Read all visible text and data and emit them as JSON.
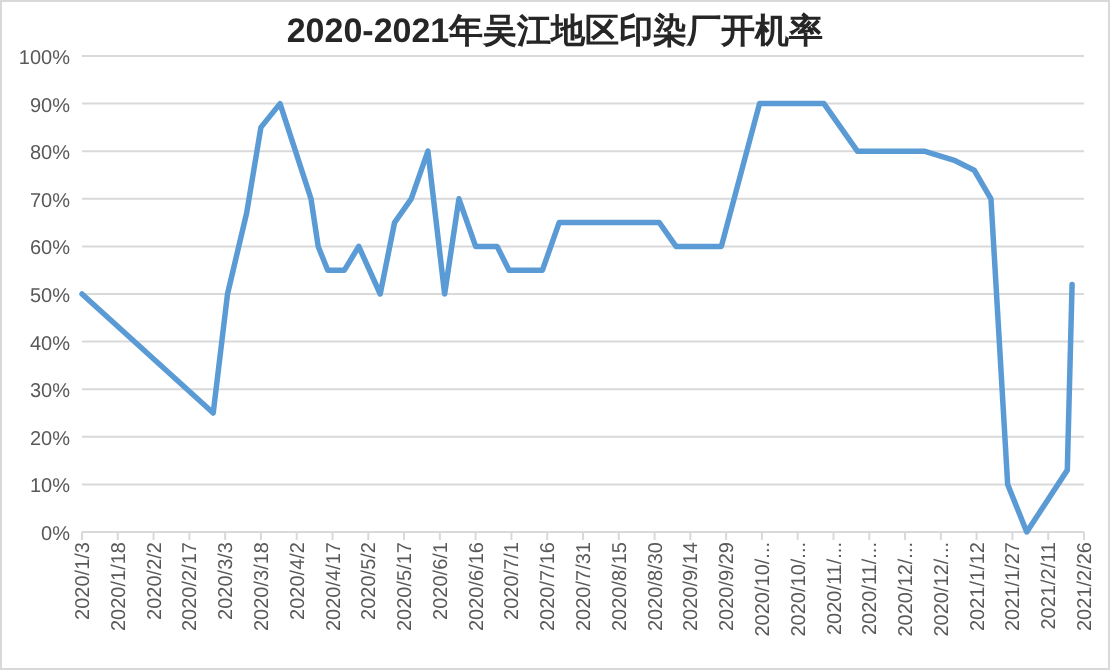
{
  "chart_data": {
    "type": "line",
    "title": "2020-2021年吴江地区印染厂开机率",
    "x": [
      "2020-01-03",
      "2020-02-27",
      "2020-03-04",
      "2020-03-12",
      "2020-03-18",
      "2020-03-26",
      "2020-04-08",
      "2020-04-11",
      "2020-04-15",
      "2020-04-22",
      "2020-04-28",
      "2020-05-07",
      "2020-05-13",
      "2020-05-20",
      "2020-05-27",
      "2020-06-03",
      "2020-06-09",
      "2020-06-16",
      "2020-06-25",
      "2020-06-30",
      "2020-07-14",
      "2020-07-21",
      "2020-09-01",
      "2020-09-08",
      "2020-09-27",
      "2020-10-13",
      "2020-11-09",
      "2020-11-23",
      "2020-12-21",
      "2021-01-03",
      "2021-01-11",
      "2021-01-18",
      "2021-01-25",
      "2021-02-02",
      "2021-02-19",
      "2021-02-21"
    ],
    "series": [
      {
        "color": "#5b9bd5",
        "values": [
          50,
          25,
          50,
          67,
          85,
          90,
          70,
          60,
          55,
          55,
          60,
          50,
          65,
          70,
          80,
          50,
          70,
          60,
          60,
          55,
          55,
          65,
          65,
          60,
          60,
          90,
          90,
          80,
          80,
          78,
          76,
          70,
          10,
          0,
          13,
          52
        ]
      }
    ],
    "ylim": [
      0,
      100
    ],
    "yticks": [
      {
        "value": 0,
        "label": "0%"
      },
      {
        "value": 10,
        "label": "10%"
      },
      {
        "value": 20,
        "label": "20%"
      },
      {
        "value": 30,
        "label": "30%"
      },
      {
        "value": 40,
        "label": "40%"
      },
      {
        "value": 50,
        "label": "50%"
      },
      {
        "value": 60,
        "label": "60%"
      },
      {
        "value": 70,
        "label": "70%"
      },
      {
        "value": 80,
        "label": "80%"
      },
      {
        "value": 90,
        "label": "90%"
      },
      {
        "value": 100,
        "label": "100%"
      }
    ],
    "xlim": [
      "2020-01-03",
      "2021-02-26"
    ],
    "xticks": [
      {
        "value": "2020-01-03",
        "label": "2020/1/3"
      },
      {
        "value": "2020-01-18",
        "label": "2020/1/18"
      },
      {
        "value": "2020-02-02",
        "label": "2020/2/2"
      },
      {
        "value": "2020-02-17",
        "label": "2020/2/17"
      },
      {
        "value": "2020-03-03",
        "label": "2020/3/3"
      },
      {
        "value": "2020-03-18",
        "label": "2020/3/18"
      },
      {
        "value": "2020-04-02",
        "label": "2020/4/2"
      },
      {
        "value": "2020-04-17",
        "label": "2020/4/17"
      },
      {
        "value": "2020-05-02",
        "label": "2020/5/2"
      },
      {
        "value": "2020-05-17",
        "label": "2020/5/17"
      },
      {
        "value": "2020-06-01",
        "label": "2020/6/1"
      },
      {
        "value": "2020-06-16",
        "label": "2020/6/16"
      },
      {
        "value": "2020-07-01",
        "label": "2020/7/1"
      },
      {
        "value": "2020-07-16",
        "label": "2020/7/16"
      },
      {
        "value": "2020-07-31",
        "label": "2020/7/31"
      },
      {
        "value": "2020-08-15",
        "label": "2020/8/15"
      },
      {
        "value": "2020-08-30",
        "label": "2020/8/30"
      },
      {
        "value": "2020-09-14",
        "label": "2020/9/14"
      },
      {
        "value": "2020-09-29",
        "label": "2020/9/29"
      },
      {
        "value": "2020-10-14",
        "label": "2020/10/..."
      },
      {
        "value": "2020-10-29",
        "label": "2020/10/..."
      },
      {
        "value": "2020-11-13",
        "label": "2020/11/..."
      },
      {
        "value": "2020-11-28",
        "label": "2020/11/..."
      },
      {
        "value": "2020-12-13",
        "label": "2020/12/..."
      },
      {
        "value": "2020-12-28",
        "label": "2020/12/..."
      },
      {
        "value": "2021-01-12",
        "label": "2021/1/12"
      },
      {
        "value": "2021-01-27",
        "label": "2021/1/27"
      },
      {
        "value": "2021-02-11",
        "label": "2021/2/11"
      },
      {
        "value": "2021-02-26",
        "label": "2021/2/26"
      }
    ],
    "grid": "y",
    "marker": "none",
    "line_style": "solid"
  }
}
